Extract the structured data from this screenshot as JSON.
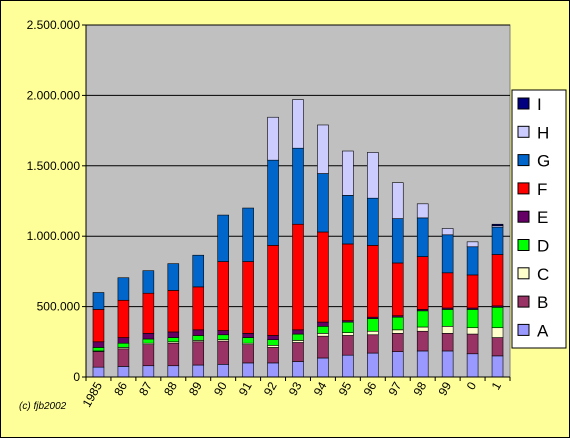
{
  "chart_data": {
    "type": "bar",
    "stacked": true,
    "title": "",
    "xlabel": "",
    "ylabel": "",
    "ylim": [
      0,
      2500000
    ],
    "y_ticks": [
      "0",
      "500.000",
      "1.000.000",
      "1.500.000",
      "2.000.000",
      "2.500.000"
    ],
    "y_tick_values": [
      0,
      500000,
      1000000,
      1500000,
      2000000,
      2500000
    ],
    "grid": true,
    "legend_position": "right",
    "categories": [
      "1985",
      "86",
      "87",
      "88",
      "89",
      "90",
      "91",
      "92",
      "93",
      "94",
      "95",
      "96",
      "97",
      "98",
      "99",
      "0",
      "1"
    ],
    "series": [
      {
        "name": "A",
        "color": "#9999ff",
        "values": [
          70000,
          75000,
          80000,
          80000,
          85000,
          90000,
          100000,
          100000,
          110000,
          135000,
          155000,
          170000,
          180000,
          185000,
          185000,
          165000,
          150000
        ]
      },
      {
        "name": "B",
        "color": "#993366",
        "values": [
          110000,
          125000,
          150000,
          160000,
          165000,
          165000,
          130000,
          110000,
          135000,
          155000,
          140000,
          130000,
          130000,
          140000,
          125000,
          140000,
          130000
        ]
      },
      {
        "name": "C",
        "color": "#ffffcc",
        "values": [
          5000,
          10000,
          10000,
          10000,
          10000,
          10000,
          10000,
          15000,
          15000,
          20000,
          20000,
          25000,
          25000,
          30000,
          50000,
          45000,
          70000
        ]
      },
      {
        "name": "D",
        "color": "#00ff00",
        "values": [
          25000,
          30000,
          30000,
          30000,
          35000,
          35000,
          40000,
          40000,
          45000,
          50000,
          75000,
          90000,
          90000,
          115000,
          120000,
          130000,
          145000
        ]
      },
      {
        "name": "E",
        "color": "#660066",
        "values": [
          40000,
          40000,
          40000,
          40000,
          40000,
          30000,
          30000,
          30000,
          30000,
          30000,
          10000,
          10000,
          10000,
          10000,
          10000,
          10000,
          10000
        ]
      },
      {
        "name": "F",
        "color": "#ff0000",
        "values": [
          230000,
          265000,
          285000,
          295000,
          305000,
          490000,
          510000,
          640000,
          750000,
          640000,
          545000,
          510000,
          375000,
          375000,
          250000,
          235000,
          365000
        ]
      },
      {
        "name": "G",
        "color": "#0066cc",
        "values": [
          120000,
          160000,
          160000,
          190000,
          225000,
          330000,
          380000,
          605000,
          540000,
          415000,
          345000,
          335000,
          315000,
          275000,
          270000,
          200000,
          195000
        ]
      },
      {
        "name": "H",
        "color": "#ccccff",
        "values": [
          0,
          0,
          0,
          0,
          0,
          0,
          0,
          305000,
          345000,
          345000,
          315000,
          325000,
          255000,
          100000,
          45000,
          35000,
          10000
        ]
      },
      {
        "name": "I",
        "color": "#000080",
        "values": [
          0,
          0,
          0,
          0,
          0,
          0,
          0,
          0,
          0,
          0,
          0,
          0,
          0,
          0,
          0,
          0,
          10000
        ]
      }
    ],
    "annotation": "(c) fjb2002"
  }
}
